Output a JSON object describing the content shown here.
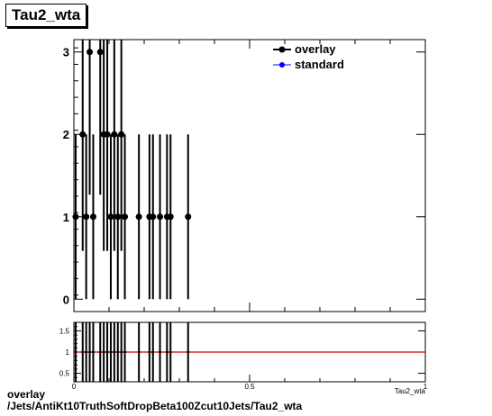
{
  "chart_data": {
    "type": "scatter",
    "title": "Tau2_wta",
    "xlabel": "Tau2_wta",
    "legend": [
      "overlay",
      "standard"
    ],
    "legend_colors": [
      "#000000",
      "#0000ff"
    ],
    "legend_position": "top-right",
    "main": {
      "xlim": [
        0,
        1
      ],
      "ylim": [
        -0.15,
        3.15
      ],
      "yticks": [
        "0",
        "1",
        "2",
        "3"
      ],
      "series": [
        {
          "name": "overlay",
          "x": [
            0.005,
            0.025,
            0.035,
            0.045,
            0.055,
            0.075,
            0.085,
            0.095,
            0.105,
            0.115,
            0.125,
            0.135,
            0.145,
            0.185,
            0.215,
            0.225,
            0.245,
            0.265,
            0.275,
            0.325
          ],
          "y": [
            1,
            2,
            1,
            3,
            1,
            3,
            2,
            2,
            1,
            2,
            1,
            2,
            1,
            1,
            1,
            1,
            1,
            1,
            1,
            1
          ]
        }
      ]
    },
    "ratio": {
      "xlim": [
        0,
        1
      ],
      "ylim": [
        0.3,
        1.7
      ],
      "yticks": [
        "0.5",
        "1",
        "1.5"
      ],
      "xticks": [
        "0",
        "0.5",
        "1"
      ],
      "reference_line": 1,
      "reference_color": "#cc0000",
      "x": [
        0.005,
        0.025,
        0.035,
        0.045,
        0.055,
        0.075,
        0.085,
        0.095,
        0.105,
        0.115,
        0.125,
        0.135,
        0.145,
        0.185,
        0.215,
        0.225,
        0.245,
        0.265,
        0.275,
        0.325
      ]
    }
  },
  "footer": {
    "line1": "overlay",
    "line2": "/Jets/AntiKt10TruthSoftDropBeta100Zcut10Jets/Tau2_wta"
  }
}
